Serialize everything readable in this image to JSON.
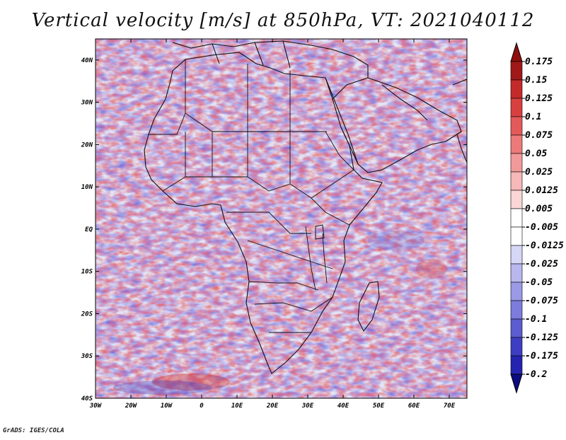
{
  "title": "Vertical velocity [m/s] at 850hPa, VT: 2021040112",
  "footer": "GrADS: IGES/COLA",
  "map": {
    "region": "Africa and Middle East",
    "lon_range": [
      -30,
      75
    ],
    "lat_range": [
      -40,
      45
    ],
    "x_ticks": [
      "30W",
      "20W",
      "10W",
      "0",
      "10E",
      "20E",
      "30E",
      "40E",
      "50E",
      "60E",
      "70E"
    ],
    "y_ticks": [
      "40N",
      "30N",
      "20N",
      "10N",
      "EQ",
      "10S",
      "20S",
      "30S",
      "40S"
    ],
    "field_colors": {
      "positive": "#e24a46",
      "negative": "#5a5ad8",
      "neutral": "#ffffff"
    }
  },
  "colorbar": {
    "labels": [
      "0.175",
      "0.15",
      "0.125",
      "0.1",
      "0.075",
      "0.05",
      "0.025",
      "0.0125",
      "0.005",
      "-0.005",
      "-0.0125",
      "-0.025",
      "-0.05",
      "-0.075",
      "-0.1",
      "-0.125",
      "-0.175",
      "-0.2"
    ],
    "colors": [
      "#a01818",
      "#c42a2a",
      "#d84040",
      "#e45a5a",
      "#ec7a7a",
      "#f29a9a",
      "#f6b8b8",
      "#fad6d6",
      "#ffffff",
      "#ffffff",
      "#d6d6f6",
      "#b8b8ee",
      "#9a9ae6",
      "#7c7cdc",
      "#5c5cd0",
      "#3e3ec2",
      "#2424b0",
      "#14149a"
    ],
    "top_arrow_color": "#900e0e",
    "bottom_arrow_color": "#0c0c80"
  }
}
